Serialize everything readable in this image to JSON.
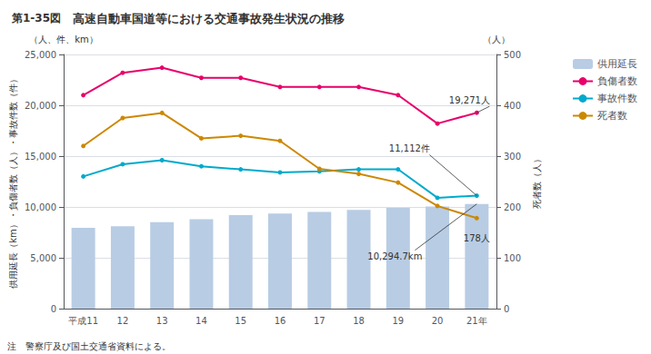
{
  "chart_data": {
    "type": "bar",
    "title": "高速自動車国道等における交通事故発生状況の推移",
    "figure_label": "第1-35図",
    "note": "注　警察庁及び国土交通省資料による。",
    "categories": [
      "平成11",
      "12",
      "13",
      "14",
      "15",
      "16",
      "17",
      "18",
      "19",
      "20",
      "21年"
    ],
    "ylabel": "供用延長（km）・負傷者数（人）・事故件数（件）",
    "y_unit_label": "（人、件、km）",
    "y2label": "死者数（人）",
    "y2_unit_label": "（人）",
    "ylim": [
      0,
      25000
    ],
    "yticks": [
      0,
      {
        "value": 5000,
        "label": "5,000"
      },
      {
        "value": 10000,
        "label": "10,000"
      },
      {
        "value": 15000,
        "label": "15,000"
      },
      {
        "value": 20000,
        "label": "20,000"
      },
      {
        "value": 25000,
        "label": "25,000"
      }
    ],
    "y2lim": [
      0,
      500
    ],
    "y2ticks": [
      0,
      100,
      200,
      300,
      400,
      500
    ],
    "grid": true,
    "legend": "upper right",
    "series": [
      {
        "name": "供用延長",
        "type": "bar",
        "color": "#b8cce4",
        "values": [
          7950,
          8100,
          8500,
          8800,
          9200,
          9350,
          9500,
          9700,
          9900,
          10050,
          10294.7
        ]
      },
      {
        "name": "負傷者数",
        "type": "line",
        "color": "#e8006a",
        "marker": "circle",
        "values": [
          21000,
          23200,
          23700,
          22700,
          22700,
          21800,
          21800,
          21800,
          21000,
          18200,
          19271
        ]
      },
      {
        "name": "事故件数",
        "type": "line",
        "color": "#00aacc",
        "marker": "circle",
        "values": [
          13000,
          14200,
          14600,
          14000,
          13700,
          13400,
          13500,
          13700,
          13700,
          10900,
          11112
        ]
      },
      {
        "name": "死者数",
        "type": "line",
        "color": "#cc8800",
        "marker": "circle",
        "axis": "y2",
        "values": [
          320,
          375,
          385,
          335,
          340,
          330,
          275,
          265,
          248,
          202,
          178
        ]
      }
    ],
    "annotations": [
      {
        "text": "19,271人",
        "series": "負傷者数",
        "category": "21年"
      },
      {
        "text": "11,112件",
        "series": "事故件数",
        "category": "21年"
      },
      {
        "text": "10,294.7km",
        "series": "供用延長",
        "category": "21年"
      },
      {
        "text": "178人",
        "series": "死者数",
        "category": "21年"
      }
    ]
  }
}
